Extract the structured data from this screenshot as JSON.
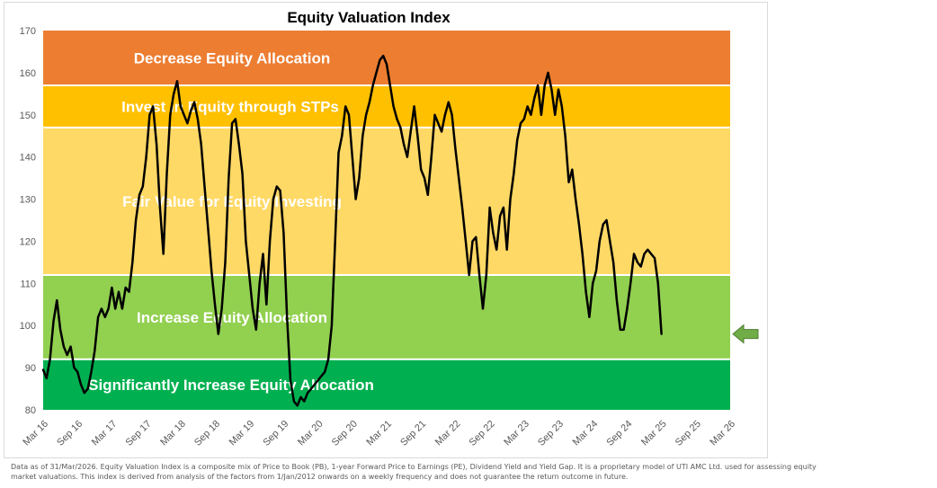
{
  "chart_data": {
    "type": "line",
    "title": "Equity Valuation Index",
    "ylim": [
      80,
      170
    ],
    "yticks": [
      80,
      90,
      100,
      110,
      120,
      130,
      140,
      150,
      160,
      170
    ],
    "x_ticks": [
      "Mar 16",
      "Sep 16",
      "Mar 17",
      "Sep 17",
      "Mar 18",
      "Sep 18",
      "Mar 19",
      "Sep 19",
      "Mar 20",
      "Sep 20",
      "Mar 21",
      "Sep 21",
      "Mar 22",
      "Sep 22",
      "Mar 23",
      "Sep 23",
      "Mar 24",
      "Sep 24",
      "Mar 25",
      "Sep 25",
      "Mar 26"
    ],
    "zones": [
      {
        "label": "Decrease Equity Allocation",
        "from": 157,
        "to": 170,
        "color": "#ED7D31"
      },
      {
        "label": "Invest in Equity through STPs",
        "from": 147,
        "to": 157,
        "color": "#FFC000"
      },
      {
        "label": "Fair Value for Equity Investing",
        "from": 112,
        "to": 147,
        "color": "#FFD966"
      },
      {
        "label": "Increase Equity Allocation",
        "from": 92,
        "to": 112,
        "color": "#92D050"
      },
      {
        "label": "Significantly Increase Equity Allocation",
        "from": 80,
        "to": 92,
        "color": "#00B050"
      }
    ],
    "series": [
      {
        "line_color": "#000000",
        "points": [
          [
            0.0,
            89.5
          ],
          [
            0.1,
            87.5
          ],
          [
            0.2,
            92
          ],
          [
            0.3,
            101
          ],
          [
            0.4,
            106
          ],
          [
            0.5,
            99
          ],
          [
            0.6,
            95
          ],
          [
            0.7,
            93
          ],
          [
            0.8,
            95
          ],
          [
            0.9,
            90
          ],
          [
            1.0,
            89
          ],
          [
            1.1,
            86
          ],
          [
            1.2,
            84
          ],
          [
            1.3,
            85
          ],
          [
            1.4,
            89
          ],
          [
            1.5,
            94
          ],
          [
            1.6,
            102
          ],
          [
            1.7,
            104
          ],
          [
            1.8,
            102
          ],
          [
            1.9,
            104
          ],
          [
            2.0,
            109
          ],
          [
            2.1,
            104
          ],
          [
            2.2,
            108
          ],
          [
            2.3,
            104
          ],
          [
            2.4,
            109
          ],
          [
            2.5,
            108
          ],
          [
            2.6,
            115
          ],
          [
            2.7,
            125
          ],
          [
            2.8,
            131
          ],
          [
            2.9,
            133
          ],
          [
            3.0,
            140
          ],
          [
            3.1,
            150
          ],
          [
            3.2,
            152
          ],
          [
            3.3,
            143
          ],
          [
            3.4,
            128
          ],
          [
            3.5,
            117
          ],
          [
            3.6,
            136
          ],
          [
            3.7,
            150
          ],
          [
            3.8,
            155
          ],
          [
            3.9,
            158
          ],
          [
            4.0,
            152
          ],
          [
            4.1,
            150
          ],
          [
            4.2,
            148
          ],
          [
            4.3,
            151
          ],
          [
            4.4,
            153
          ],
          [
            4.5,
            149
          ],
          [
            4.6,
            143
          ],
          [
            4.7,
            133
          ],
          [
            4.8,
            123
          ],
          [
            4.9,
            113
          ],
          [
            5.0,
            105
          ],
          [
            5.1,
            98
          ],
          [
            5.2,
            104
          ],
          [
            5.3,
            115
          ],
          [
            5.4,
            135
          ],
          [
            5.5,
            148
          ],
          [
            5.6,
            149
          ],
          [
            5.7,
            143
          ],
          [
            5.8,
            136
          ],
          [
            5.9,
            120
          ],
          [
            6.0,
            112
          ],
          [
            6.1,
            104
          ],
          [
            6.2,
            99
          ],
          [
            6.3,
            110
          ],
          [
            6.4,
            117
          ],
          [
            6.5,
            105
          ],
          [
            6.6,
            120
          ],
          [
            6.7,
            130
          ],
          [
            6.8,
            133
          ],
          [
            6.9,
            132
          ],
          [
            7.0,
            122
          ],
          [
            7.1,
            102
          ],
          [
            7.2,
            87
          ],
          [
            7.3,
            82
          ],
          [
            7.4,
            81
          ],
          [
            7.5,
            83
          ],
          [
            7.6,
            82
          ],
          [
            7.7,
            84
          ],
          [
            7.8,
            85
          ],
          [
            7.9,
            86
          ],
          [
            8.0,
            87
          ],
          [
            8.1,
            88
          ],
          [
            8.2,
            89
          ],
          [
            8.3,
            92
          ],
          [
            8.4,
            100
          ],
          [
            8.5,
            120
          ],
          [
            8.6,
            141
          ],
          [
            8.7,
            145
          ],
          [
            8.8,
            152
          ],
          [
            8.9,
            150
          ],
          [
            9.0,
            140
          ],
          [
            9.1,
            130
          ],
          [
            9.2,
            135
          ],
          [
            9.3,
            145
          ],
          [
            9.4,
            150
          ],
          [
            9.5,
            153
          ],
          [
            9.6,
            157
          ],
          [
            9.7,
            160
          ],
          [
            9.8,
            163
          ],
          [
            9.9,
            164
          ],
          [
            10.0,
            162
          ],
          [
            10.1,
            157
          ],
          [
            10.2,
            152
          ],
          [
            10.3,
            149
          ],
          [
            10.4,
            147
          ],
          [
            10.5,
            143
          ],
          [
            10.6,
            140
          ],
          [
            10.7,
            146
          ],
          [
            10.8,
            152
          ],
          [
            10.9,
            145
          ],
          [
            11.0,
            137
          ],
          [
            11.1,
            135
          ],
          [
            11.2,
            131
          ],
          [
            11.3,
            140
          ],
          [
            11.4,
            150
          ],
          [
            11.5,
            148
          ],
          [
            11.6,
            146
          ],
          [
            11.7,
            150
          ],
          [
            11.8,
            153
          ],
          [
            11.9,
            150
          ],
          [
            12.0,
            142
          ],
          [
            12.1,
            135
          ],
          [
            12.2,
            128
          ],
          [
            12.3,
            120
          ],
          [
            12.4,
            112
          ],
          [
            12.5,
            120
          ],
          [
            12.6,
            121
          ],
          [
            12.7,
            112
          ],
          [
            12.8,
            104
          ],
          [
            12.9,
            112
          ],
          [
            13.0,
            128
          ],
          [
            13.1,
            122
          ],
          [
            13.2,
            118
          ],
          [
            13.3,
            126
          ],
          [
            13.4,
            128
          ],
          [
            13.5,
            118
          ],
          [
            13.6,
            130
          ],
          [
            13.7,
            136
          ],
          [
            13.8,
            144
          ],
          [
            13.9,
            148
          ],
          [
            14.0,
            149
          ],
          [
            14.1,
            152
          ],
          [
            14.2,
            150
          ],
          [
            14.3,
            154
          ],
          [
            14.4,
            157
          ],
          [
            14.5,
            150
          ],
          [
            14.6,
            157
          ],
          [
            14.7,
            160
          ],
          [
            14.8,
            156
          ],
          [
            14.9,
            150
          ],
          [
            15.0,
            156
          ],
          [
            15.1,
            152
          ],
          [
            15.2,
            145
          ],
          [
            15.3,
            134
          ],
          [
            15.4,
            137
          ],
          [
            15.5,
            130
          ],
          [
            15.6,
            124
          ],
          [
            15.7,
            117
          ],
          [
            15.8,
            108
          ],
          [
            15.9,
            102
          ],
          [
            16.0,
            110
          ],
          [
            16.1,
            113
          ],
          [
            16.2,
            120
          ],
          [
            16.3,
            124
          ],
          [
            16.4,
            125
          ],
          [
            16.5,
            120
          ],
          [
            16.6,
            115
          ],
          [
            16.7,
            106
          ],
          [
            16.8,
            99
          ],
          [
            16.9,
            99
          ],
          [
            17.0,
            104
          ],
          [
            17.1,
            110
          ],
          [
            17.2,
            117
          ],
          [
            17.3,
            115
          ],
          [
            17.4,
            114
          ],
          [
            17.5,
            117
          ],
          [
            17.6,
            118
          ],
          [
            17.7,
            117
          ],
          [
            17.8,
            116
          ],
          [
            17.9,
            110
          ],
          [
            18.0,
            98
          ]
        ]
      }
    ],
    "current_marker": {
      "direction": "left",
      "color": "#70AD47"
    }
  },
  "footnote": {
    "line1": "Data as of 31/Mar/2026. Equity Valuation Index is a composite mix of Price to Book (PB), 1-year Forward Price to Earnings (PE), Dividend Yield and Yield Gap. It is a proprietary model of UTI AMC Ltd. used for assessing equity",
    "line2": "market valuations. This index is derived from analysis of the factors from 1/Jan/2012 onwards on a weekly frequency and does not guarantee the return outcome in future."
  }
}
